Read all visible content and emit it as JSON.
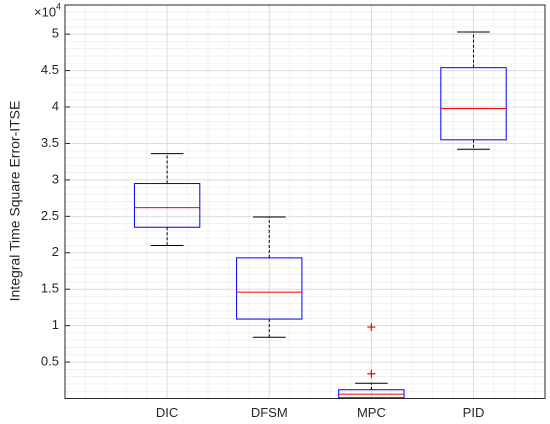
{
  "chart_data": {
    "type": "box",
    "y_label": "Integral Time Square Error-ITSE",
    "exponent_base": "×10",
    "exponent_power": "4",
    "categories": [
      "DIC",
      "DFSM",
      "MPC",
      "PID"
    ],
    "whisker_low": [
      2.1,
      0.84,
      0,
      3.42
    ],
    "q1": [
      2.35,
      1.09,
      0.01,
      3.55
    ],
    "median": [
      2.62,
      1.46,
      0.06,
      3.98
    ],
    "q3": [
      2.95,
      1.93,
      0.12,
      4.54
    ],
    "whisker_high": [
      3.36,
      2.49,
      0.21,
      5.03
    ],
    "outliers": [
      [],
      [],
      [
        0.98,
        0.34
      ],
      []
    ],
    "box_color": "#0000ff",
    "median_color": "#ff0000",
    "whisker_color": "#000000",
    "outlier_color": "#ff0000",
    "ylim": [
      0,
      5.4
    ],
    "yticks": [
      0.5,
      1,
      1.5,
      2,
      2.5,
      3,
      3.5,
      4,
      4.5,
      5
    ],
    "grid": true,
    "minor_grid": true
  }
}
